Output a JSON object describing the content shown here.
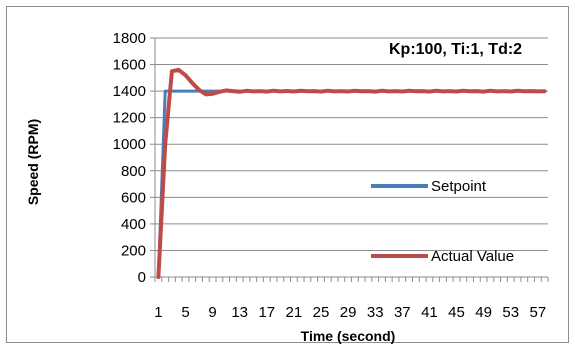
{
  "chart_data": {
    "type": "line",
    "title": "",
    "annotation": "Kp:100, Ti:1, Td:2",
    "xlabel": "Time (second)",
    "ylabel": "Speed (RPM)",
    "xlim": [
      1,
      58
    ],
    "ylim": [
      0,
      1800
    ],
    "x_tick_labels": [
      "1",
      "5",
      "9",
      "13",
      "17",
      "21",
      "25",
      "29",
      "33",
      "37",
      "41",
      "45",
      "49",
      "53",
      "57"
    ],
    "y_tick_labels": [
      "0",
      "200",
      "400",
      "600",
      "800",
      "1000",
      "1200",
      "1400",
      "1600",
      "1800"
    ],
    "grid": "horizontal",
    "legend_position": "center-right",
    "series": [
      {
        "name": "Setpoint",
        "color": "#4a7ebb",
        "x": [
          1,
          2,
          58
        ],
        "y": [
          0,
          1400,
          1400
        ]
      },
      {
        "name": "Actual Value",
        "color": "#be4b48",
        "x": [
          1,
          2,
          3,
          4,
          5,
          6,
          7,
          8,
          9,
          10,
          11,
          12,
          13,
          14,
          15,
          16,
          17,
          18,
          19,
          20,
          21,
          22,
          23,
          24,
          25,
          26,
          27,
          28,
          29,
          30,
          31,
          32,
          33,
          34,
          35,
          36,
          37,
          38,
          39,
          40,
          41,
          42,
          43,
          44,
          45,
          46,
          47,
          48,
          49,
          50,
          51,
          52,
          53,
          54,
          55,
          56,
          57,
          58
        ],
        "y": [
          0,
          1000,
          1550,
          1560,
          1520,
          1460,
          1410,
          1375,
          1380,
          1395,
          1405,
          1400,
          1395,
          1402,
          1398,
          1400,
          1396,
          1403,
          1398,
          1401,
          1397,
          1402,
          1399,
          1400,
          1396,
          1403,
          1398,
          1400,
          1397,
          1402,
          1399,
          1400,
          1396,
          1403,
          1398,
          1400,
          1397,
          1402,
          1399,
          1400,
          1396,
          1403,
          1398,
          1400,
          1397,
          1402,
          1399,
          1400,
          1396,
          1403,
          1398,
          1400,
          1397,
          1402,
          1399,
          1400,
          1398,
          1399
        ]
      }
    ]
  }
}
